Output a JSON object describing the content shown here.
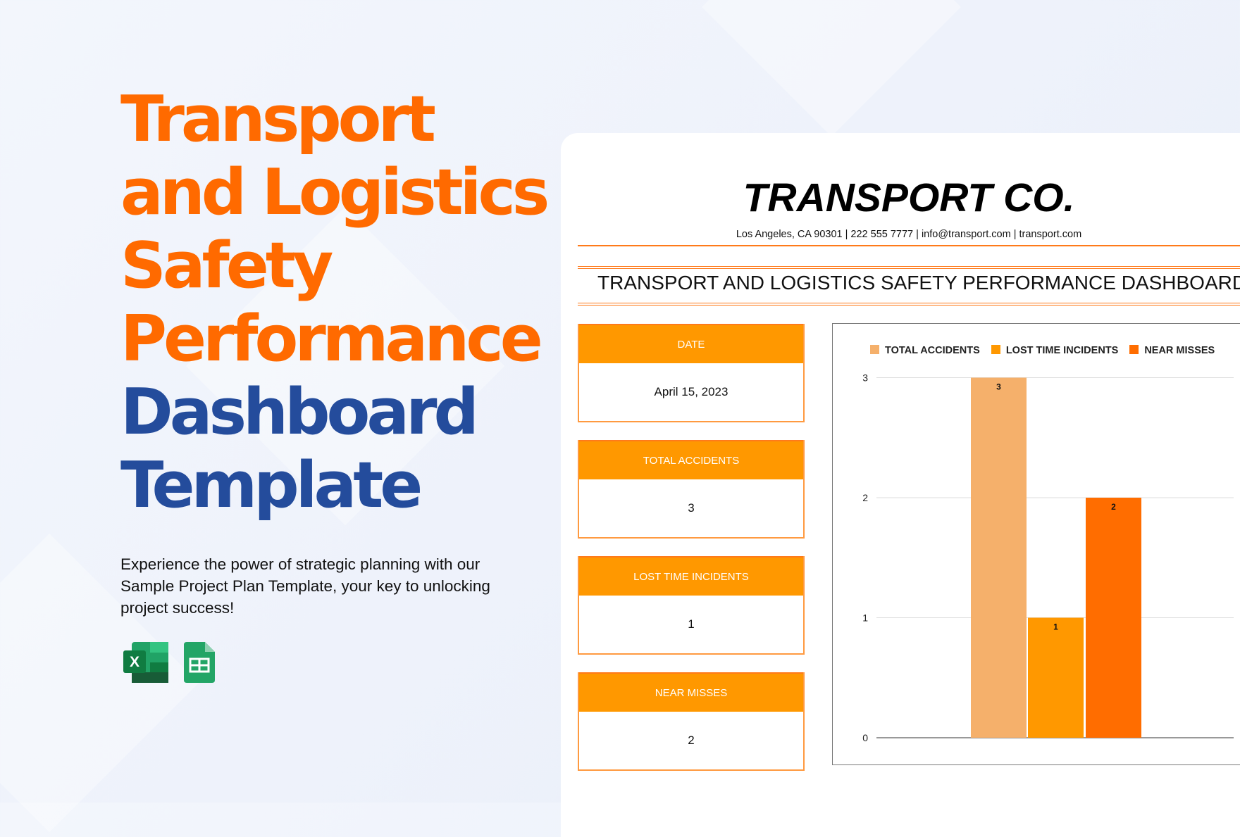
{
  "hero": {
    "lines": [
      "Transport",
      "and Logistics",
      "Safety",
      "Performance",
      "Dashboard",
      "Template"
    ],
    "description": "Experience the power of strategic planning with our Sample Project Plan Template, your key to unlocking project success!",
    "icons": [
      "excel-icon",
      "google-sheets-icon"
    ]
  },
  "company": {
    "name": "TRANSPORT CO.",
    "address": "Los Angeles, CA 90301 | 222 555 7777 | info@transport.com | transport.com"
  },
  "dashboard_title": "TRANSPORT AND LOGISTICS SAFETY PERFORMANCE DASHBOARD",
  "kpis": [
    {
      "label": "DATE",
      "value": "April 15, 2023"
    },
    {
      "label": "TOTAL ACCIDENTS",
      "value": "3"
    },
    {
      "label": "LOST TIME INCIDENTS",
      "value": "1"
    },
    {
      "label": "NEAR MISSES",
      "value": "2"
    }
  ],
  "colors": {
    "orange": "#ff6a00",
    "blue": "#244c9c",
    "header_orange": "#ff9800"
  },
  "chart_data": {
    "type": "bar",
    "legend_position": "top",
    "grid": true,
    "ylim": [
      0,
      3
    ],
    "yticks": [
      "0",
      "1",
      "2",
      "3"
    ],
    "series": [
      {
        "name": "TOTAL ACCIDENTS",
        "value": 3,
        "label": "3",
        "color": "#f5b06b"
      },
      {
        "name": "LOST TIME INCIDENTS",
        "value": 1,
        "label": "1",
        "color": "#ff9800"
      },
      {
        "name": "NEAR MISSES",
        "value": 2,
        "label": "2",
        "color": "#ff6d00"
      }
    ]
  }
}
